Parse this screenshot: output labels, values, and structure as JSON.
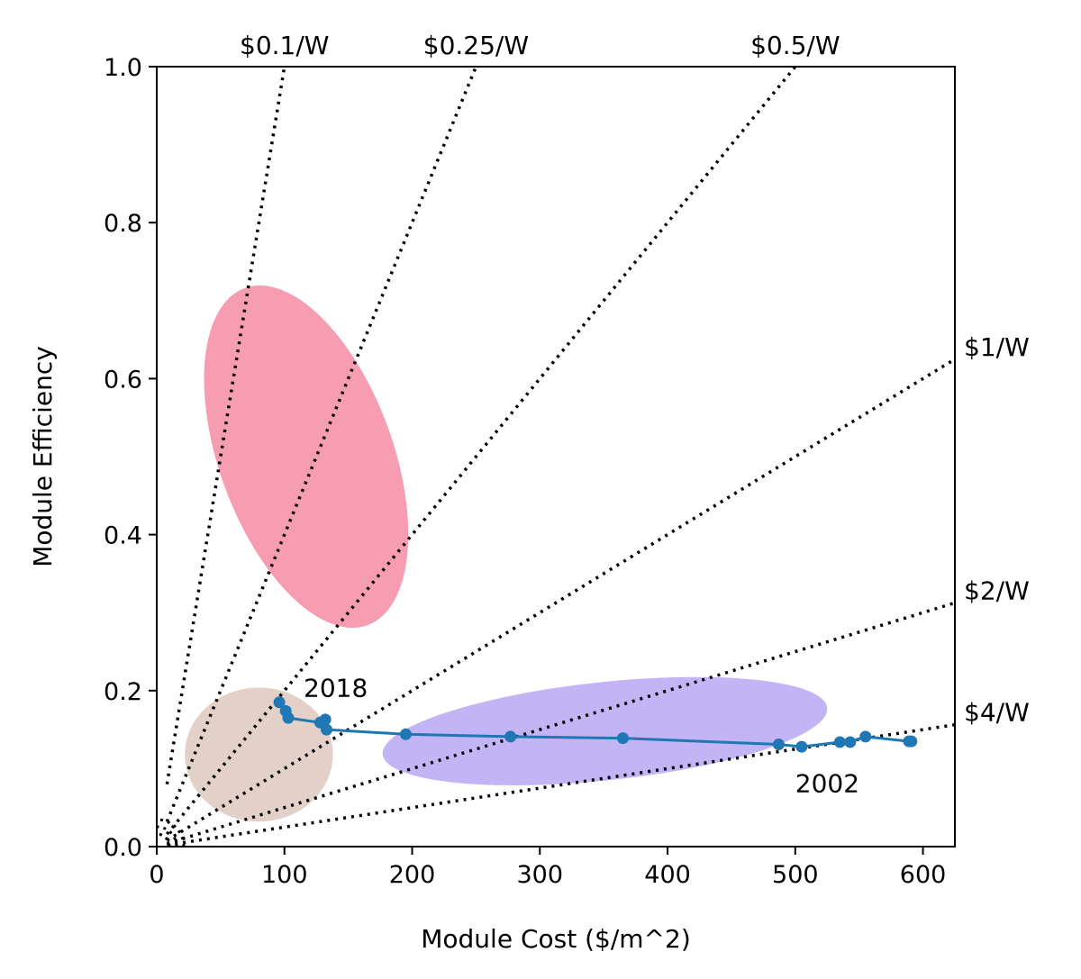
{
  "chart_data": {
    "type": "scatter",
    "xlabel": "Module Cost ($/m^2)",
    "ylabel": "Module Efficiency",
    "xlim": [
      0,
      625
    ],
    "ylim": [
      0,
      1.0
    ],
    "xticks": [
      0,
      100,
      200,
      300,
      400,
      500,
      600
    ],
    "xtick_labels": [
      "0",
      "100",
      "200",
      "300",
      "400",
      "500",
      "600"
    ],
    "yticks": [
      0.0,
      0.2,
      0.4,
      0.6,
      0.8,
      1.0
    ],
    "ytick_labels": [
      "0.0",
      "0.2",
      "0.4",
      "0.6",
      "0.8",
      "1.0"
    ],
    "iso_cost_lines": [
      {
        "label": "$0.1/W",
        "price_per_watt": 0.1
      },
      {
        "label": "$0.25/W",
        "price_per_watt": 0.25
      },
      {
        "label": "$0.5/W",
        "price_per_watt": 0.5
      },
      {
        "label": "$1/W",
        "price_per_watt": 1
      },
      {
        "label": "$2/W",
        "price_per_watt": 2
      },
      {
        "label": "$4/W",
        "price_per_watt": 4
      }
    ],
    "regions": [
      {
        "name": "red-region",
        "color": "#f48ca4",
        "center": [
          117,
          0.5
        ],
        "semi_axis_x": 68,
        "semi_axis_y": 0.23,
        "rotation_deg": -20
      },
      {
        "name": "tan-region",
        "color": "#ddc8c0",
        "center": [
          80,
          0.118
        ],
        "semi_axis_x": 58,
        "semi_axis_y": 0.086,
        "rotation_deg": 0
      },
      {
        "name": "purple-region",
        "color": "#b9a7f4",
        "center": [
          351,
          0.148
        ],
        "semi_axis_x": 175,
        "semi_axis_y": 0.063,
        "rotation_deg": -6
      }
    ],
    "series": [
      {
        "name": "module-history",
        "color": "#1f77b4",
        "x": [
          591,
          589,
          555,
          543,
          535,
          505,
          487,
          365,
          277,
          195,
          133,
          132,
          128,
          103,
          101,
          96
        ],
        "y": [
          0.135,
          0.135,
          0.141,
          0.134,
          0.134,
          0.128,
          0.131,
          0.139,
          0.141,
          0.144,
          0.15,
          0.163,
          0.159,
          0.165,
          0.174,
          0.185
        ]
      }
    ],
    "annotations": [
      {
        "text": "2018",
        "x": 115,
        "y": 0.192
      },
      {
        "text": "2002",
        "x": 500,
        "y": 0.07
      }
    ]
  }
}
